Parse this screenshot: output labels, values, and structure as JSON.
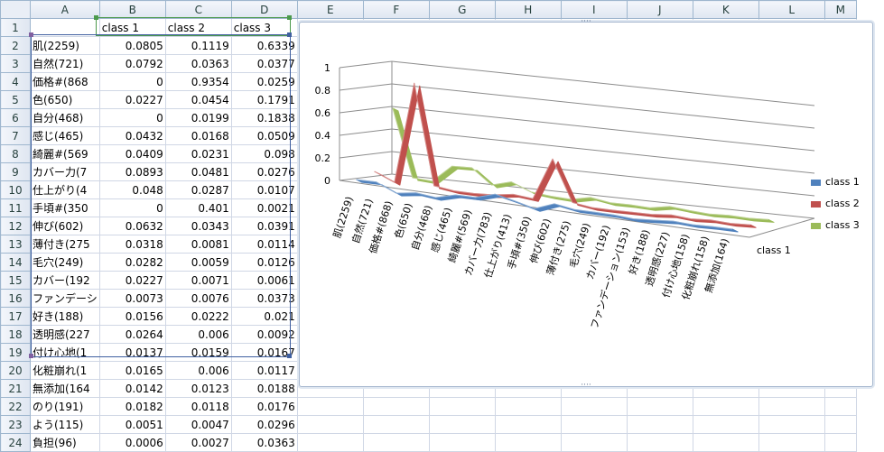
{
  "columns": [
    "A",
    "B",
    "C",
    "D",
    "E",
    "F",
    "G",
    "H",
    "I",
    "J",
    "K",
    "L",
    "M"
  ],
  "rows": [
    {
      "n": "1",
      "a": "",
      "b": "class 1",
      "c": "class 2",
      "d": "class 3"
    },
    {
      "n": "2",
      "a": "肌(2259)",
      "b": "0.0805",
      "c": "0.1119",
      "d": "0.6339"
    },
    {
      "n": "3",
      "a": "自然(721)",
      "b": "0.0792",
      "c": "0.0363",
      "d": "0.0377"
    },
    {
      "n": "4",
      "a": "価格#(868",
      "b": "0",
      "c": "0.9354",
      "d": "0.0259"
    },
    {
      "n": "5",
      "a": "色(650)",
      "b": "0.0227",
      "c": "0.0454",
      "d": "0.1791"
    },
    {
      "n": "6",
      "a": "自分(468)",
      "b": "0",
      "c": "0.0199",
      "d": "0.1838"
    },
    {
      "n": "7",
      "a": "感じ(465)",
      "b": "0.0432",
      "c": "0.0168",
      "d": "0.0509"
    },
    {
      "n": "8",
      "a": "綺麗#(569",
      "b": "0.0409",
      "c": "0.0231",
      "d": "0.098"
    },
    {
      "n": "9",
      "a": "カバー力(7",
      "b": "0.0893",
      "c": "0.0481",
      "d": "0.0276"
    },
    {
      "n": "10",
      "a": "仕上がり(4",
      "b": "0.048",
      "c": "0.0287",
      "d": "0.0107"
    },
    {
      "n": "11",
      "a": "手頃#(350",
      "b": "0",
      "c": "0.401",
      "d": "0.0021"
    },
    {
      "n": "12",
      "a": "伸び(602)",
      "b": "0.0632",
      "c": "0.0343",
      "d": "0.0391"
    },
    {
      "n": "13",
      "a": "薄付き(275",
      "b": "0.0318",
      "c": "0.0081",
      "d": "0.0114"
    },
    {
      "n": "14",
      "a": "毛穴(249)",
      "b": "0.0282",
      "c": "0.0059",
      "d": "0.0126"
    },
    {
      "n": "15",
      "a": "カバー(192",
      "b": "0.0227",
      "c": "0.0071",
      "d": "0.0061"
    },
    {
      "n": "16",
      "a": "ファンデーシ",
      "b": "0.0073",
      "c": "0.0076",
      "d": "0.0373"
    },
    {
      "n": "17",
      "a": "好き(188)",
      "b": "0.0156",
      "c": "0.0222",
      "d": "0.021"
    },
    {
      "n": "18",
      "a": "透明感(227",
      "b": "0.0264",
      "c": "0.006",
      "d": "0.0092"
    },
    {
      "n": "19",
      "a": "付け心地(1",
      "b": "0.0137",
      "c": "0.0159",
      "d": "0.0167"
    },
    {
      "n": "20",
      "a": "化粧崩れ(1",
      "b": "0.0165",
      "c": "0.006",
      "d": "0.0117"
    },
    {
      "n": "21",
      "a": "無添加(164",
      "b": "0.0142",
      "c": "0.0123",
      "d": "0.0188"
    },
    {
      "n": "22",
      "a": "のり(191)",
      "b": "0.0182",
      "c": "0.0118",
      "d": "0.0176"
    },
    {
      "n": "23",
      "a": "よう(115)",
      "b": "0.0051",
      "c": "0.0047",
      "d": "0.0296"
    },
    {
      "n": "24",
      "a": "負担(96)",
      "b": "0.0006",
      "c": "0.0027",
      "d": "0.0363"
    }
  ],
  "chart_data": {
    "type": "line",
    "categories": [
      "肌(2259)",
      "自然(721)",
      "価格#(868)",
      "色(650)",
      "自分(468)",
      "感じ(465)",
      "綺麗#(569)",
      "カバー力(783)",
      "仕上がり(413)",
      "手頃#(350)",
      "伸び(602)",
      "薄付き(275)",
      "毛穴(249)",
      "カバー(192)",
      "ファンデーション(153)",
      "好き(188)",
      "透明感(227)",
      "付け心地(158)",
      "化粧崩れ(158)",
      "無添加(164)"
    ],
    "series": [
      {
        "name": "class 1",
        "color": "#4f81bd",
        "values": [
          0.0805,
          0.0792,
          0,
          0.0227,
          0,
          0.0432,
          0.0409,
          0.0893,
          0.048,
          0,
          0.0632,
          0.0318,
          0.0282,
          0.0227,
          0.0073,
          0.0156,
          0.0264,
          0.0137,
          0.0165,
          0.0142
        ]
      },
      {
        "name": "class 2",
        "color": "#c0504d",
        "values": [
          0.1119,
          0.0363,
          0.9354,
          0.0454,
          0.0199,
          0.0168,
          0.0231,
          0.0481,
          0.0287,
          0.401,
          0.0343,
          0.0081,
          0.0059,
          0.0071,
          0.0076,
          0.0222,
          0.006,
          0.0159,
          0.006,
          0.0123
        ]
      },
      {
        "name": "class 3",
        "color": "#9bbb59",
        "values": [
          0.6339,
          0.0377,
          0.0259,
          0.1791,
          0.1838,
          0.0509,
          0.098,
          0.0276,
          0.0107,
          0.0021,
          0.0391,
          0.0114,
          0.0126,
          0.0061,
          0.0373,
          0.021,
          0.0092,
          0.0167,
          0.0117,
          0.0188
        ]
      }
    ],
    "yticks": [
      "0",
      "0.2",
      "0.4",
      "0.6",
      "0.8",
      "1"
    ],
    "ylim": [
      0,
      1
    ],
    "depth_axis_label": "class 1",
    "legend_position": "right",
    "grid": true
  }
}
